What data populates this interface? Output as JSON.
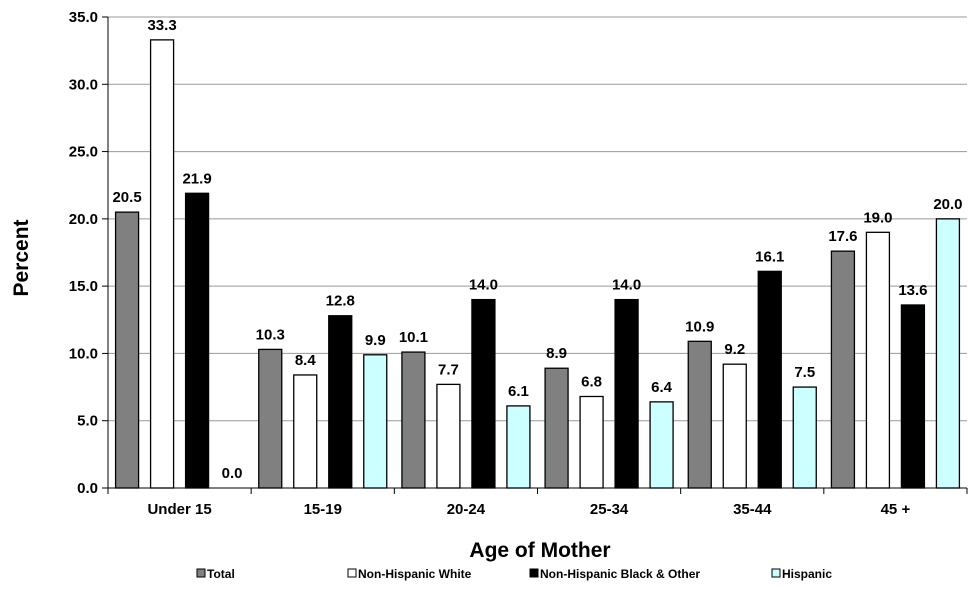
{
  "chart_data": {
    "type": "bar",
    "title": "",
    "xlabel": "Age of Mother",
    "ylabel": "Percent",
    "ylim": [
      0,
      35
    ],
    "yticks": [
      "0.0",
      "5.0",
      "10.0",
      "15.0",
      "20.0",
      "25.0",
      "30.0",
      "35.0"
    ],
    "categories": [
      "Under 15",
      "15-19",
      "20-24",
      "25-34",
      "35-44",
      "45 +"
    ],
    "grid": true,
    "legend_position": "bottom",
    "series": [
      {
        "name": "Total",
        "color": "#808080",
        "values": [
          20.5,
          10.3,
          10.1,
          8.9,
          10.9,
          17.6
        ],
        "labels": [
          "20.5",
          "10.3",
          "10.1",
          "8.9",
          "10.9",
          "17.6"
        ]
      },
      {
        "name": "Non-Hispanic White",
        "color": "#ffffff",
        "values": [
          33.3,
          8.4,
          7.7,
          6.8,
          9.2,
          19.0
        ],
        "labels": [
          "33.3",
          "8.4",
          "7.7",
          "6.8",
          "9.2",
          "19.0"
        ]
      },
      {
        "name": "Non-Hispanic Black & Other",
        "color": "#000000",
        "values": [
          21.9,
          12.8,
          14.0,
          14.0,
          16.1,
          13.6
        ],
        "labels": [
          "21.9",
          "12.8",
          "14.0",
          "14.0",
          "16.1",
          "13.6"
        ]
      },
      {
        "name": "Hispanic",
        "color": "#ccffff",
        "values": [
          0.0,
          9.9,
          6.1,
          6.4,
          7.5,
          20.0
        ],
        "labels": [
          "0.0",
          "9.9",
          "6.1",
          "6.4",
          "7.5",
          "20.0"
        ]
      }
    ]
  }
}
